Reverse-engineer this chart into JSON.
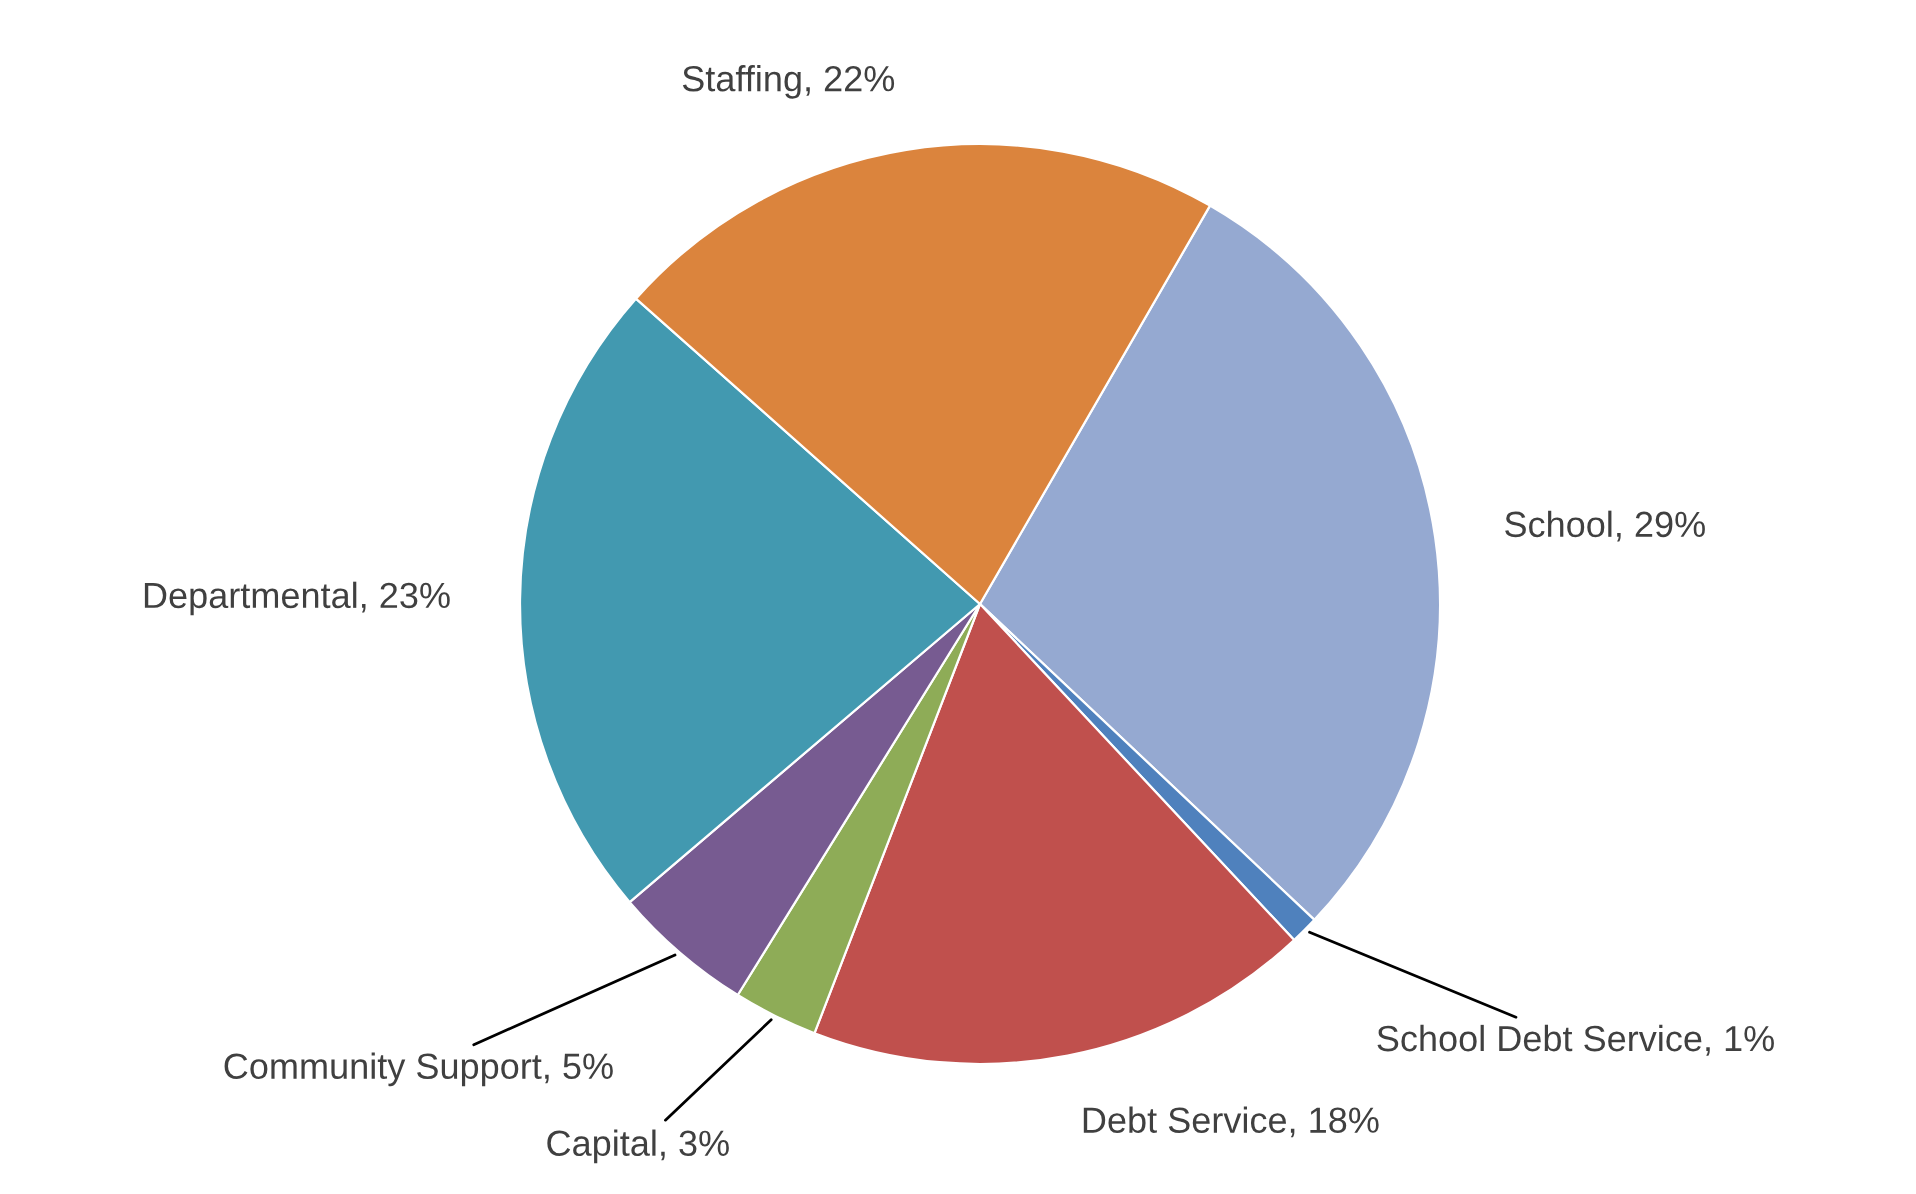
{
  "chart_data": {
    "type": "pie",
    "categories": [
      "School",
      "School Debt Service",
      "Debt Service",
      "Capital",
      "Community Support",
      "Departmental",
      "Staffing"
    ],
    "values": [
      29,
      1,
      18,
      3,
      5,
      23,
      22
    ],
    "value_labels": [
      "29%",
      "1%",
      "18%",
      "3%",
      "5%",
      "23%",
      "22%"
    ],
    "colors": [
      "#95a9d1",
      "#4f81bd",
      "#c0504d",
      "#8eac57",
      "#775b91",
      "#4299b0",
      "#db843d"
    ],
    "legend": false
  }
}
